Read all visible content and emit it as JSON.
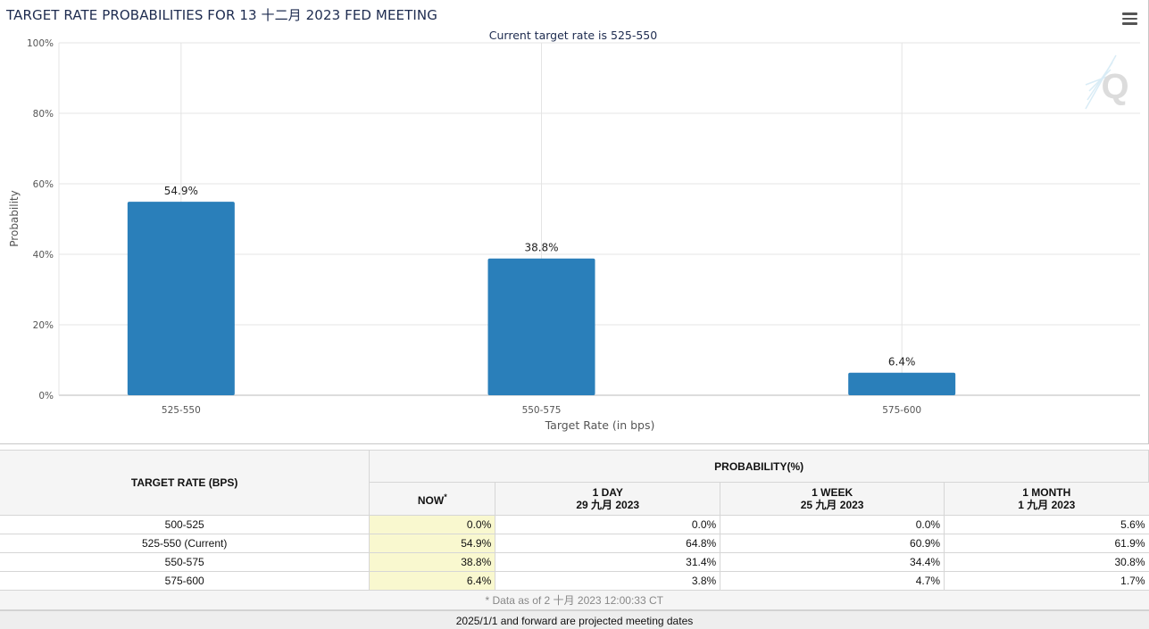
{
  "chart_data": {
    "type": "bar",
    "title": "TARGET RATE PROBABILITIES FOR 13 十二月 2023 FED MEETING",
    "subtitle": "Current target rate is 525-550",
    "categories": [
      "525-550",
      "550-575",
      "575-600"
    ],
    "values": [
      54.9,
      38.8,
      6.4
    ],
    "data_labels": [
      "54.9%",
      "38.8%",
      "6.4%"
    ],
    "xlabel": "Target Rate (in bps)",
    "ylabel": "Probability",
    "ylim": [
      0,
      100
    ],
    "yticks": [
      "0%",
      "20%",
      "40%",
      "60%",
      "80%",
      "100%"
    ],
    "grid": true,
    "bar_color": "#2a7fba"
  },
  "table": {
    "col_rate": "TARGET RATE (BPS)",
    "col_prob": "PROBABILITY(%)",
    "col_now": "NOW",
    "col_now_mark": "*",
    "col_day": "1 DAY",
    "col_day_date": "29 九月 2023",
    "col_week": "1 WEEK",
    "col_week_date": "25 九月 2023",
    "col_month": "1 MONTH",
    "col_month_date": "1 九月 2023",
    "rows": [
      {
        "rate": "500-525",
        "now": "0.0%",
        "day": "0.0%",
        "week": "0.0%",
        "month": "5.6%"
      },
      {
        "rate": "525-550 (Current)",
        "now": "54.9%",
        "day": "64.8%",
        "week": "60.9%",
        "month": "61.9%"
      },
      {
        "rate": "550-575",
        "now": "38.8%",
        "day": "31.4%",
        "week": "34.4%",
        "month": "30.8%"
      },
      {
        "rate": "575-600",
        "now": "6.4%",
        "day": "3.8%",
        "week": "4.7%",
        "month": "1.7%"
      }
    ],
    "note": "* Data as of 2 十月 2023 12:00:33 CT"
  },
  "footer": "2025/1/1 and forward are projected meeting dates",
  "icons": {
    "menu": "hamburger-menu-icon",
    "watermark": "Q"
  }
}
